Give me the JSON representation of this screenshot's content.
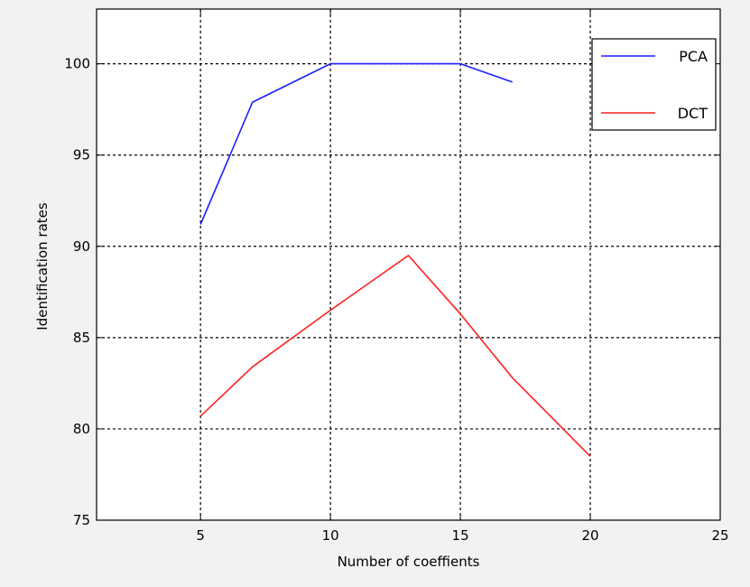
{
  "chart_data": {
    "type": "line",
    "xlabel": "Number of coeffients",
    "ylabel": "Identification rates",
    "xlim": [
      1,
      25
    ],
    "ylim": [
      75,
      103
    ],
    "xticks": [
      5,
      10,
      15,
      20,
      25
    ],
    "yticks": [
      75,
      80,
      85,
      90,
      95,
      100
    ],
    "grid": true,
    "legend_position": "top-right",
    "series": [
      {
        "name": "PCA",
        "color": "#1f1fff",
        "x": [
          5,
          7,
          10,
          13,
          15,
          17
        ],
        "y": [
          91.2,
          97.9,
          100,
          100,
          100,
          99
        ]
      },
      {
        "name": "DCT",
        "color": "#ff1f1f",
        "x": [
          5,
          7,
          10,
          13,
          15,
          17,
          20
        ],
        "y": [
          80.7,
          83.4,
          86.5,
          89.5,
          86.3,
          82.8,
          78.5
        ]
      }
    ]
  }
}
